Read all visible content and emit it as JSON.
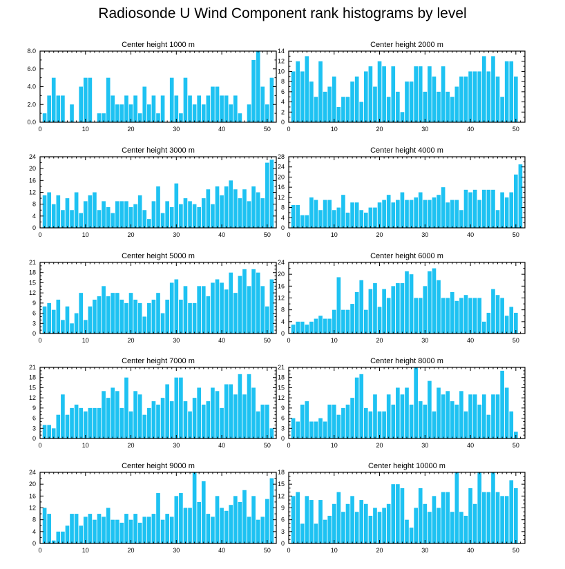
{
  "page": {
    "title": "Radiosonde U Wind Component rank histograms by level"
  },
  "colors": {
    "bar": "#1ec2f2",
    "axis": "#000000",
    "bar_edge": "#ffffff"
  },
  "chart_data": [
    {
      "type": "bar",
      "title": "Center height 1000 m",
      "xlim": [
        0,
        52
      ],
      "ylim": [
        0,
        8
      ],
      "xticks": [
        0,
        10,
        20,
        30,
        40,
        50
      ],
      "yticks": [
        0,
        2,
        4,
        6,
        8
      ],
      "ytick_labels": [
        "0.0",
        "2.0",
        "4.0",
        "6.0",
        "8.0"
      ],
      "x": [
        1,
        2,
        3,
        4,
        5,
        6,
        7,
        8,
        9,
        10,
        11,
        12,
        13,
        14,
        15,
        16,
        17,
        18,
        19,
        20,
        21,
        22,
        23,
        24,
        25,
        26,
        27,
        28,
        29,
        30,
        31,
        32,
        33,
        34,
        35,
        36,
        37,
        38,
        39,
        40,
        41,
        42,
        43,
        44,
        45,
        46,
        47,
        48,
        49,
        50,
        51
      ],
      "values": [
        1,
        3,
        5,
        3,
        3,
        0,
        2,
        0,
        4,
        5,
        5,
        0,
        1,
        1,
        5,
        3,
        2,
        2,
        3,
        2,
        3,
        1,
        4,
        2,
        3,
        1,
        3,
        0,
        5,
        3,
        1,
        5,
        3,
        2,
        3,
        2,
        3,
        4,
        4,
        3,
        3,
        2,
        3,
        1,
        0,
        2,
        7,
        8,
        4,
        2,
        5
      ]
    },
    {
      "type": "bar",
      "title": "Center height 2000 m",
      "xlim": [
        0,
        52
      ],
      "ylim": [
        0,
        14
      ],
      "xticks": [
        0,
        10,
        20,
        30,
        40,
        50
      ],
      "yticks": [
        0,
        2,
        4,
        6,
        8,
        10,
        12,
        14
      ],
      "x": [
        1,
        2,
        3,
        4,
        5,
        6,
        7,
        8,
        9,
        10,
        11,
        12,
        13,
        14,
        15,
        16,
        17,
        18,
        19,
        20,
        21,
        22,
        23,
        24,
        25,
        26,
        27,
        28,
        29,
        30,
        31,
        32,
        33,
        34,
        35,
        36,
        37,
        38,
        39,
        40,
        41,
        42,
        43,
        44,
        45,
        46,
        47,
        48,
        49,
        50,
        51
      ],
      "values": [
        10,
        12,
        10,
        13,
        8,
        5,
        12,
        6,
        7,
        9,
        3,
        5,
        5,
        8,
        9,
        4,
        10,
        11,
        7,
        12,
        11,
        5,
        11,
        6,
        2,
        8,
        8,
        11,
        11,
        6,
        11,
        9,
        6,
        11,
        6,
        5,
        7,
        9,
        9,
        10,
        10,
        10,
        13,
        10,
        13,
        9,
        5,
        12,
        12,
        9,
        0
      ]
    },
    {
      "type": "bar",
      "title": "Center height 3000 m",
      "xlim": [
        0,
        52
      ],
      "ylim": [
        0,
        24
      ],
      "xticks": [
        0,
        10,
        20,
        30,
        40,
        50
      ],
      "yticks": [
        0,
        4,
        8,
        12,
        16,
        20,
        24
      ],
      "x": [
        1,
        2,
        3,
        4,
        5,
        6,
        7,
        8,
        9,
        10,
        11,
        12,
        13,
        14,
        15,
        16,
        17,
        18,
        19,
        20,
        21,
        22,
        23,
        24,
        25,
        26,
        27,
        28,
        29,
        30,
        31,
        32,
        33,
        34,
        35,
        36,
        37,
        38,
        39,
        40,
        41,
        42,
        43,
        44,
        45,
        46,
        47,
        48,
        49,
        50,
        51
      ],
      "values": [
        11,
        12,
        8,
        11,
        6,
        10,
        6,
        12,
        5,
        9,
        11,
        12,
        6,
        9,
        7,
        5,
        9,
        9,
        9,
        7,
        8,
        11,
        6,
        3,
        9,
        14,
        5,
        9,
        7,
        15,
        8,
        10,
        9,
        8,
        7,
        10,
        13,
        8,
        14,
        11,
        14,
        16,
        13,
        10,
        13,
        9,
        14,
        12,
        10,
        22,
        23
      ]
    },
    {
      "type": "bar",
      "title": "Center height 4000 m",
      "xlim": [
        0,
        52
      ],
      "ylim": [
        0,
        28
      ],
      "xticks": [
        0,
        10,
        20,
        30,
        40,
        50
      ],
      "yticks": [
        0,
        4,
        8,
        12,
        16,
        20,
        24,
        28
      ],
      "x": [
        1,
        2,
        3,
        4,
        5,
        6,
        7,
        8,
        9,
        10,
        11,
        12,
        13,
        14,
        15,
        16,
        17,
        18,
        19,
        20,
        21,
        22,
        23,
        24,
        25,
        26,
        27,
        28,
        29,
        30,
        31,
        32,
        33,
        34,
        35,
        36,
        37,
        38,
        39,
        40,
        41,
        42,
        43,
        44,
        45,
        46,
        47,
        48,
        49,
        50,
        51
      ],
      "values": [
        9,
        9,
        5,
        5,
        12,
        11,
        7,
        11,
        11,
        7,
        8,
        13,
        6,
        10,
        10,
        7,
        6,
        8,
        8,
        10,
        11,
        13,
        10,
        11,
        14,
        11,
        11,
        12,
        14,
        11,
        11,
        12,
        13,
        16,
        10,
        11,
        11,
        7,
        15,
        14,
        15,
        11,
        15,
        15,
        15,
        7,
        14,
        12,
        14,
        21,
        25
      ]
    },
    {
      "type": "bar",
      "title": "Center height 5000 m",
      "xlim": [
        0,
        52
      ],
      "ylim": [
        0,
        21
      ],
      "xticks": [
        0,
        10,
        20,
        30,
        40,
        50
      ],
      "yticks": [
        0,
        3,
        6,
        9,
        12,
        15,
        18,
        21
      ],
      "x": [
        1,
        2,
        3,
        4,
        5,
        6,
        7,
        8,
        9,
        10,
        11,
        12,
        13,
        14,
        15,
        16,
        17,
        18,
        19,
        20,
        21,
        22,
        23,
        24,
        25,
        26,
        27,
        28,
        29,
        30,
        31,
        32,
        33,
        34,
        35,
        36,
        37,
        38,
        39,
        40,
        41,
        42,
        43,
        44,
        45,
        46,
        47,
        48,
        49,
        50,
        51
      ],
      "values": [
        8,
        9,
        7,
        10,
        4,
        8,
        3,
        6,
        12,
        4,
        8,
        10,
        11,
        14,
        11,
        12,
        12,
        10,
        9,
        12,
        10,
        9,
        5,
        9,
        10,
        12,
        6,
        10,
        15,
        16,
        10,
        14,
        9,
        9,
        14,
        14,
        11,
        15,
        16,
        15,
        13,
        18,
        12,
        17,
        19,
        14,
        19,
        18,
        14,
        8,
        16
      ]
    },
    {
      "type": "bar",
      "title": "Center height 6000 m",
      "xlim": [
        0,
        52
      ],
      "ylim": [
        0,
        24
      ],
      "xticks": [
        0,
        10,
        20,
        30,
        40,
        50
      ],
      "yticks": [
        0,
        4,
        8,
        12,
        16,
        20,
        24
      ],
      "x": [
        1,
        2,
        3,
        4,
        5,
        6,
        7,
        8,
        9,
        10,
        11,
        12,
        13,
        14,
        15,
        16,
        17,
        18,
        19,
        20,
        21,
        22,
        23,
        24,
        25,
        26,
        27,
        28,
        29,
        30,
        31,
        32,
        33,
        34,
        35,
        36,
        37,
        38,
        39,
        40,
        41,
        42,
        43,
        44,
        45,
        46,
        47,
        48,
        49,
        50,
        51
      ],
      "values": [
        3,
        4,
        4,
        3,
        4,
        5,
        6,
        5,
        5,
        8,
        19,
        8,
        8,
        10,
        14,
        18,
        8,
        15,
        17,
        9,
        15,
        12,
        16,
        17,
        17,
        21,
        20,
        12,
        12,
        16,
        21,
        22,
        18,
        12,
        12,
        14,
        11,
        12,
        13,
        12,
        12,
        12,
        4,
        7,
        15,
        13,
        12,
        6,
        9,
        7,
        0
      ]
    },
    {
      "type": "bar",
      "title": "Center height 7000 m",
      "xlim": [
        0,
        52
      ],
      "ylim": [
        0,
        21
      ],
      "xticks": [
        0,
        10,
        20,
        30,
        40,
        50
      ],
      "yticks": [
        0,
        3,
        6,
        9,
        12,
        15,
        18,
        21
      ],
      "x": [
        1,
        2,
        3,
        4,
        5,
        6,
        7,
        8,
        9,
        10,
        11,
        12,
        13,
        14,
        15,
        16,
        17,
        18,
        19,
        20,
        21,
        22,
        23,
        24,
        25,
        26,
        27,
        28,
        29,
        30,
        31,
        32,
        33,
        34,
        35,
        36,
        37,
        38,
        39,
        40,
        41,
        42,
        43,
        44,
        45,
        46,
        47,
        48,
        49,
        50,
        51
      ],
      "values": [
        4,
        4,
        3,
        7,
        13,
        7,
        9,
        10,
        9,
        8,
        9,
        9,
        9,
        14,
        12,
        15,
        14,
        9,
        18,
        8,
        14,
        13,
        7,
        9,
        11,
        10,
        12,
        16,
        11,
        18,
        18,
        11,
        8,
        12,
        15,
        10,
        11,
        15,
        14,
        9,
        16,
        16,
        13,
        19,
        13,
        19,
        15,
        8,
        10,
        10,
        3
      ]
    },
    {
      "type": "bar",
      "title": "Center height 8000 m",
      "xlim": [
        0,
        52
      ],
      "ylim": [
        0,
        21
      ],
      "xticks": [
        0,
        10,
        20,
        30,
        40,
        50
      ],
      "yticks": [
        0,
        3,
        6,
        9,
        12,
        15,
        18,
        21
      ],
      "x": [
        1,
        2,
        3,
        4,
        5,
        6,
        7,
        8,
        9,
        10,
        11,
        12,
        13,
        14,
        15,
        16,
        17,
        18,
        19,
        20,
        21,
        22,
        23,
        24,
        25,
        26,
        27,
        28,
        29,
        30,
        31,
        32,
        33,
        34,
        35,
        36,
        37,
        38,
        39,
        40,
        41,
        42,
        43,
        44,
        45,
        46,
        47,
        48,
        49,
        50,
        51
      ],
      "values": [
        6,
        5,
        10,
        11,
        5,
        5,
        6,
        5,
        10,
        10,
        7,
        9,
        10,
        12,
        18,
        19,
        9,
        8,
        13,
        8,
        8,
        13,
        10,
        15,
        13,
        15,
        10,
        21,
        11,
        10,
        17,
        8,
        15,
        13,
        14,
        11,
        10,
        14,
        8,
        13,
        13,
        10,
        13,
        7,
        13,
        13,
        20,
        15,
        8,
        2,
        0
      ]
    },
    {
      "type": "bar",
      "title": "Center height 9000 m",
      "xlim": [
        0,
        52
      ],
      "ylim": [
        0,
        24
      ],
      "xticks": [
        0,
        10,
        20,
        30,
        40,
        50
      ],
      "yticks": [
        0,
        4,
        8,
        12,
        16,
        20,
        24
      ],
      "x": [
        1,
        2,
        3,
        4,
        5,
        6,
        7,
        8,
        9,
        10,
        11,
        12,
        13,
        14,
        15,
        16,
        17,
        18,
        19,
        20,
        21,
        22,
        23,
        24,
        25,
        26,
        27,
        28,
        29,
        30,
        31,
        32,
        33,
        34,
        35,
        36,
        37,
        38,
        39,
        40,
        41,
        42,
        43,
        44,
        45,
        46,
        47,
        48,
        49,
        50,
        51
      ],
      "values": [
        12,
        10,
        1,
        4,
        4,
        6,
        10,
        10,
        6,
        9,
        10,
        8,
        10,
        9,
        12,
        8,
        8,
        7,
        10,
        8,
        10,
        7,
        9,
        9,
        10,
        17,
        8,
        10,
        9,
        16,
        17,
        12,
        12,
        24,
        14,
        21,
        10,
        9,
        16,
        12,
        11,
        13,
        16,
        14,
        18,
        9,
        16,
        8,
        9,
        15,
        22
      ]
    },
    {
      "type": "bar",
      "title": "Center height 10000 m",
      "xlim": [
        0,
        52
      ],
      "ylim": [
        0,
        18
      ],
      "xticks": [
        0,
        10,
        20,
        30,
        40,
        50
      ],
      "yticks": [
        0,
        3,
        6,
        9,
        12,
        15,
        18
      ],
      "x": [
        1,
        2,
        3,
        4,
        5,
        6,
        7,
        8,
        9,
        10,
        11,
        12,
        13,
        14,
        15,
        16,
        17,
        18,
        19,
        20,
        21,
        22,
        23,
        24,
        25,
        26,
        27,
        28,
        29,
        30,
        31,
        32,
        33,
        34,
        35,
        36,
        37,
        38,
        39,
        40,
        41,
        42,
        43,
        44,
        45,
        46,
        47,
        48,
        49,
        50,
        51
      ],
      "values": [
        12,
        13,
        5,
        12,
        11,
        5,
        11,
        6,
        7,
        10,
        13,
        8,
        10,
        12,
        8,
        11,
        10,
        7,
        9,
        8,
        9,
        10,
        15,
        15,
        14,
        6,
        4,
        9,
        14,
        10,
        8,
        12,
        9,
        13,
        13,
        8,
        18,
        8,
        7,
        14,
        10,
        18,
        13,
        13,
        18,
        13,
        12,
        12,
        16,
        14,
        0
      ]
    }
  ]
}
